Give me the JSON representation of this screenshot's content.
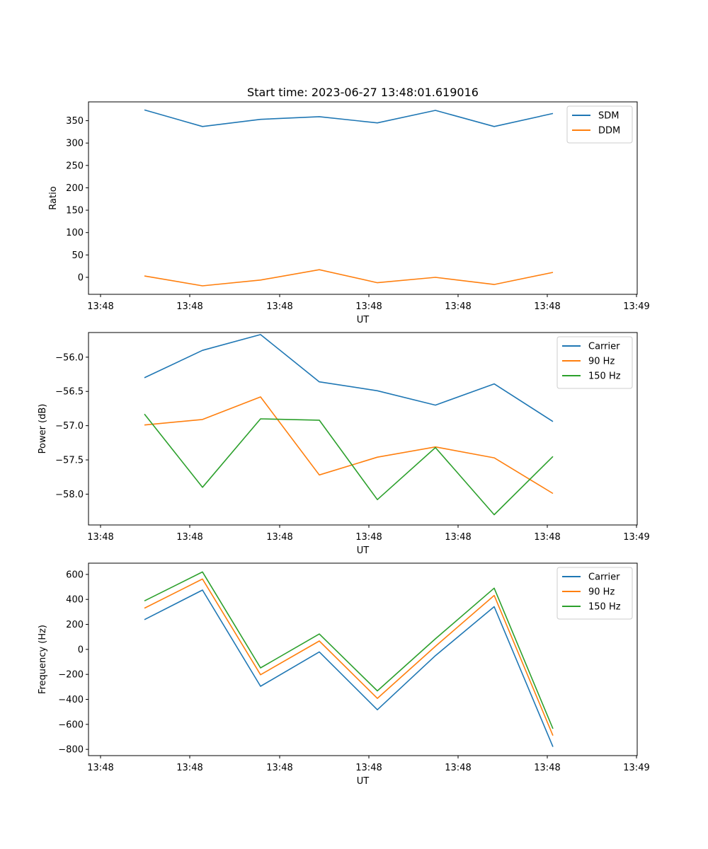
{
  "figure_title": "Start time: 2023-06-27 13:48:01.619016",
  "chart_data": [
    {
      "type": "line",
      "title": "Start time: 2023-06-27 13:48:01.619016",
      "xlabel": "UT",
      "ylabel": "Ratio",
      "x_tick_labels": [
        "13:48",
        "13:48",
        "13:48",
        "13:48",
        "13:48",
        "13:48",
        "13:48"
      ],
      "x_edge_tick_label": "13:49",
      "y_ticks": [
        0,
        50,
        100,
        150,
        200,
        250,
        300,
        350
      ],
      "y_tick_labels": [
        "0",
        "50",
        "100",
        "150",
        "200",
        "250",
        "300",
        "350"
      ],
      "ylim": [
        -38,
        392
      ],
      "legend_position": "upper right",
      "series": [
        {
          "name": "SDM",
          "color": "#1f77b4",
          "values": [
            374,
            337,
            353,
            359,
            345,
            373,
            337,
            366
          ]
        },
        {
          "name": "DDM",
          "color": "#ff7f0e",
          "values": [
            3,
            -19,
            -6,
            17,
            -12,
            0,
            -16,
            11
          ]
        }
      ]
    },
    {
      "type": "line",
      "title": "",
      "xlabel": "UT",
      "ylabel": "Power (dB)",
      "x_tick_labels": [
        "13:48",
        "13:48",
        "13:48",
        "13:48",
        "13:48",
        "13:48",
        "13:48"
      ],
      "x_edge_tick_label": "13:49",
      "y_ticks": [
        -56.0,
        -56.5,
        -57.0,
        -57.5,
        -58.0
      ],
      "y_tick_labels": [
        "−56.0",
        "−56.5",
        "−57.0",
        "−57.5",
        "−58.0"
      ],
      "ylim": [
        -58.45,
        -55.64
      ],
      "legend_position": "upper right",
      "series": [
        {
          "name": "Carrier",
          "color": "#1f77b4",
          "values": [
            -56.3,
            -55.9,
            -55.67,
            -56.36,
            -56.49,
            -56.7,
            -56.39,
            -56.94
          ]
        },
        {
          "name": "90 Hz",
          "color": "#ff7f0e",
          "values": [
            -56.99,
            -56.91,
            -56.58,
            -57.72,
            -57.46,
            -57.31,
            -57.47,
            -57.99
          ]
        },
        {
          "name": "150 Hz",
          "color": "#2ca02c",
          "values": [
            -56.83,
            -57.9,
            -56.9,
            -56.92,
            -58.08,
            -57.32,
            -58.3,
            -57.45
          ]
        }
      ]
    },
    {
      "type": "line",
      "title": "",
      "xlabel": "UT",
      "ylabel": "Frequency (Hz)",
      "x_tick_labels": [
        "13:48",
        "13:48",
        "13:48",
        "13:48",
        "13:48",
        "13:48",
        "13:48"
      ],
      "x_edge_tick_label": "13:49",
      "y_ticks": [
        600,
        400,
        200,
        0,
        -200,
        -400,
        -600,
        -800
      ],
      "y_tick_labels": [
        "600",
        "400",
        "200",
        "0",
        "−200",
        "−400",
        "−600",
        "−800"
      ],
      "ylim": [
        -850,
        690
      ],
      "legend_position": "upper right",
      "series": [
        {
          "name": "Carrier",
          "color": "#1f77b4",
          "values": [
            238,
            475,
            -295,
            -20,
            -483,
            -50,
            342,
            -780
          ]
        },
        {
          "name": "90 Hz",
          "color": "#ff7f0e",
          "values": [
            330,
            563,
            -203,
            67,
            -392,
            25,
            432,
            -690
          ]
        },
        {
          "name": "150 Hz",
          "color": "#2ca02c",
          "values": [
            388,
            620,
            -148,
            123,
            -332,
            85,
            490,
            -635
          ]
        }
      ]
    }
  ]
}
